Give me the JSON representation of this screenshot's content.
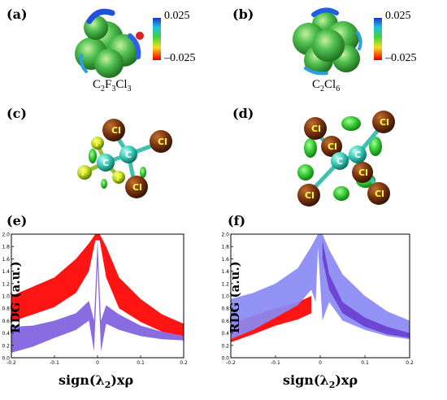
{
  "panels": {
    "a": "(a)",
    "b": "(b)",
    "c": "(c)",
    "d": "(d)",
    "e": "(e)",
    "f": "(f)"
  },
  "formulas": {
    "a_main": "C",
    "a_s1": "2",
    "a_mid": "F",
    "a_s2": "3",
    "a_end": "Cl",
    "a_s3": "3",
    "b_main": "C",
    "b_s1": "2",
    "b_end": "Cl",
    "b_s2": "6"
  },
  "colorbar": {
    "max": "0.025",
    "min": "–0.025"
  },
  "atoms": {
    "c": "C",
    "f": "F",
    "cl": "Cl"
  },
  "chart_data": [
    {
      "panel": "(e)",
      "type": "scatter",
      "title": "",
      "xlabel_main": "sign(λ",
      "xlabel_sub": "2",
      "xlabel_end": ")xρ",
      "ylabel": "RDG (a.u.)",
      "xlim": [
        -0.2,
        0.2
      ],
      "ylim": [
        0.0,
        2.0
      ],
      "xticks": [
        "-0.2",
        "-0.1",
        "0",
        "0.1",
        "0.2"
      ],
      "yticks": [
        "0.0",
        "0.2",
        "0.4",
        "0.6",
        "0.8",
        "1.0",
        "1.2",
        "1.4",
        "1.6",
        "1.8",
        "2.0"
      ],
      "series": [
        {
          "color": "#ff0000",
          "upper": [
            [
              -0.2,
              1.0
            ],
            [
              -0.15,
              1.15
            ],
            [
              -0.1,
              1.3
            ],
            [
              -0.05,
              1.6
            ],
            [
              -0.02,
              1.85
            ],
            [
              -0.005,
              2.0
            ],
            [
              0.005,
              2.0
            ],
            [
              0.02,
              1.8
            ],
            [
              0.05,
              1.3
            ],
            [
              0.1,
              0.95
            ],
            [
              0.15,
              0.7
            ],
            [
              0.2,
              0.55
            ]
          ],
          "lower": [
            [
              -0.2,
              0.58
            ],
            [
              -0.15,
              0.7
            ],
            [
              -0.1,
              0.82
            ],
            [
              -0.05,
              1.05
            ],
            [
              -0.02,
              1.4
            ],
            [
              -0.005,
              1.9
            ],
            [
              0.005,
              1.9
            ],
            [
              0.02,
              1.3
            ],
            [
              0.05,
              0.8
            ],
            [
              0.1,
              0.58
            ],
            [
              0.15,
              0.42
            ],
            [
              0.2,
              0.35
            ]
          ]
        },
        {
          "color": "#8060e0",
          "upper": [
            [
              -0.2,
              0.5
            ],
            [
              -0.15,
              0.52
            ],
            [
              -0.1,
              0.6
            ],
            [
              -0.05,
              0.72
            ],
            [
              -0.02,
              0.92
            ],
            [
              -0.008,
              0.6
            ],
            [
              0.0,
              1.9
            ],
            [
              0.008,
              0.6
            ],
            [
              0.02,
              0.85
            ],
            [
              0.05,
              0.7
            ],
            [
              0.1,
              0.52
            ],
            [
              0.15,
              0.42
            ],
            [
              0.2,
              0.35
            ]
          ],
          "lower": [
            [
              -0.2,
              0.08
            ],
            [
              -0.15,
              0.18
            ],
            [
              -0.1,
              0.32
            ],
            [
              -0.05,
              0.45
            ],
            [
              -0.02,
              0.6
            ],
            [
              -0.008,
              0.1
            ],
            [
              0.0,
              1.5
            ],
            [
              0.008,
              0.1
            ],
            [
              0.02,
              0.55
            ],
            [
              0.05,
              0.45
            ],
            [
              0.1,
              0.35
            ],
            [
              0.15,
              0.3
            ],
            [
              0.2,
              0.28
            ]
          ]
        }
      ]
    },
    {
      "panel": "(f)",
      "type": "scatter",
      "title": "",
      "xlabel_main": "sign(λ",
      "xlabel_sub": "2",
      "xlabel_end": ")xρ",
      "ylabel": "RDG (a.u.)",
      "xlim": [
        -0.2,
        0.2
      ],
      "ylim": [
        0.0,
        2.0
      ],
      "xticks": [
        "-0.2",
        "-0.1",
        "0",
        "0.1",
        "0.2"
      ],
      "yticks": [
        "0.0",
        "0.2",
        "0.4",
        "0.6",
        "0.8",
        "1.0",
        "1.2",
        "1.4",
        "1.6",
        "1.8",
        "2.0"
      ],
      "series": [
        {
          "color": "#ff0000",
          "upper": [
            [
              -0.2,
              0.55
            ],
            [
              -0.15,
              0.68
            ],
            [
              -0.1,
              0.8
            ],
            [
              -0.05,
              0.9
            ],
            [
              -0.02,
              1.0
            ]
          ],
          "lower": [
            [
              -0.2,
              0.25
            ],
            [
              -0.15,
              0.38
            ],
            [
              -0.1,
              0.52
            ],
            [
              -0.05,
              0.62
            ],
            [
              -0.02,
              0.72
            ]
          ]
        },
        {
          "color": "#8a8af5",
          "upper": [
            [
              -0.2,
              0.95
            ],
            [
              -0.15,
              1.05
            ],
            [
              -0.1,
              1.2
            ],
            [
              -0.05,
              1.45
            ],
            [
              -0.02,
              1.8
            ],
            [
              -0.005,
              2.0
            ],
            [
              0.005,
              2.0
            ],
            [
              0.02,
              1.75
            ],
            [
              0.05,
              1.35
            ],
            [
              0.1,
              1.0
            ],
            [
              0.15,
              0.75
            ],
            [
              0.2,
              0.6
            ]
          ],
          "lower": [
            [
              -0.2,
              0.3
            ],
            [
              -0.15,
              0.45
            ],
            [
              -0.1,
              0.65
            ],
            [
              -0.05,
              0.85
            ],
            [
              -0.02,
              1.1
            ],
            [
              -0.01,
              0.9
            ],
            [
              -0.005,
              1.8
            ],
            [
              0.005,
              0.6
            ],
            [
              0.02,
              0.9
            ],
            [
              0.05,
              0.6
            ],
            [
              0.1,
              0.45
            ],
            [
              0.15,
              0.35
            ],
            [
              0.2,
              0.3
            ]
          ]
        },
        {
          "color": "#6a3fd0",
          "upper": [
            [
              0.005,
              1.9
            ],
            [
              0.02,
              1.35
            ],
            [
              0.05,
              0.9
            ],
            [
              0.1,
              0.65
            ],
            [
              0.15,
              0.5
            ],
            [
              0.2,
              0.4
            ]
          ],
          "lower": [
            [
              0.005,
              1.6
            ],
            [
              0.02,
              1.1
            ],
            [
              0.05,
              0.72
            ],
            [
              0.1,
              0.5
            ],
            [
              0.15,
              0.38
            ],
            [
              0.2,
              0.32
            ]
          ]
        }
      ]
    }
  ]
}
